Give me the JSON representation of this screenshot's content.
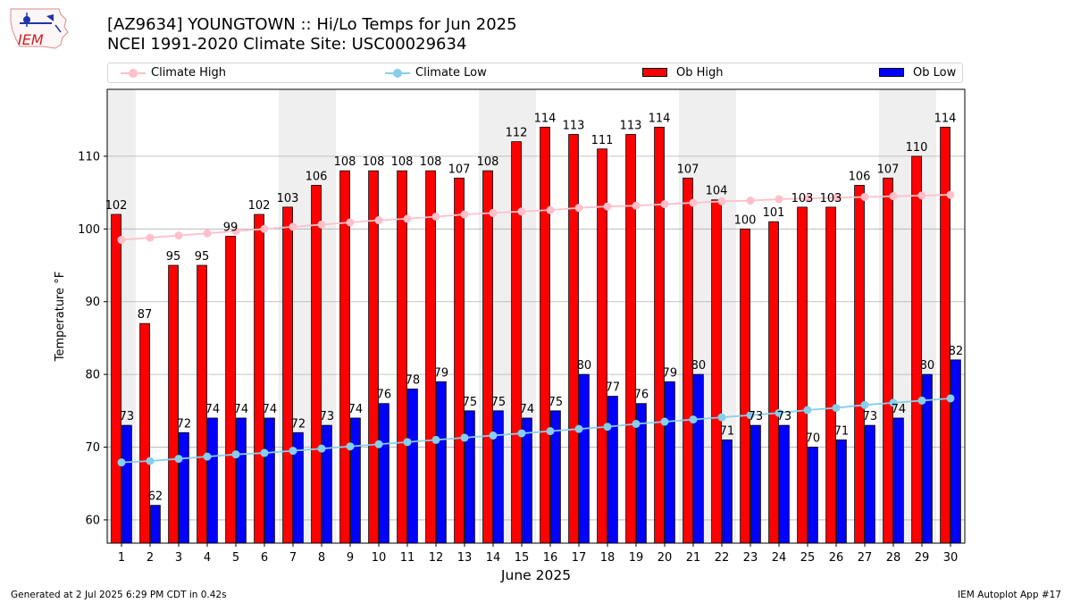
{
  "header": {
    "title_line1": "[AZ9634] YOUNGTOWN :: Hi/Lo Temps for Jun 2025",
    "title_line2": "NCEI 1991-2020 Climate Site: USC00029634"
  },
  "logo": {
    "text": "IEM"
  },
  "legend": {
    "placement": "top, full width",
    "climate_high": "Climate High",
    "climate_low": "Climate Low",
    "ob_high": "Ob High",
    "ob_low": "Ob Low"
  },
  "footer": {
    "left": "Generated at 2 Jul 2025 6:29 PM CDT in 0.42s",
    "right": "IEM Autoplot App #17"
  },
  "colors": {
    "ob_high": "#ff0000",
    "ob_low": "#0000ff",
    "climate_high": "#ffc0cb",
    "climate_low": "#87ceeb",
    "weekend_shade": "#efefef",
    "grid": "#b0b0b0"
  },
  "chart_data": {
    "type": "bar",
    "title": "[AZ9634] YOUNGTOWN :: Hi/Lo Temps for Jun 2025",
    "subtitle": "NCEI 1991-2020 Climate Site: USC00029634",
    "xlabel": "June 2025",
    "ylabel": "Temperature °F",
    "ylim": [
      56.8,
      119.2
    ],
    "yticks": [
      60,
      70,
      80,
      90,
      100,
      110
    ],
    "grid": "y",
    "categories": [
      "1",
      "2",
      "3",
      "4",
      "5",
      "6",
      "7",
      "8",
      "9",
      "10",
      "11",
      "12",
      "13",
      "14",
      "15",
      "16",
      "17",
      "18",
      "19",
      "20",
      "21",
      "22",
      "23",
      "24",
      "25",
      "26",
      "27",
      "28",
      "29",
      "30"
    ],
    "shaded_days": [
      1,
      7,
      8,
      14,
      15,
      21,
      22,
      28,
      29
    ],
    "series": [
      {
        "name": "Ob High",
        "kind": "bar",
        "values": [
          102,
          87,
          95,
          95,
          99,
          102,
          103,
          106,
          108,
          108,
          108,
          108,
          107,
          108,
          112,
          114,
          113,
          111,
          113,
          114,
          107,
          104,
          100,
          101,
          103,
          103,
          106,
          107,
          110,
          114
        ]
      },
      {
        "name": "Ob Low",
        "kind": "bar",
        "values": [
          73,
          62,
          72,
          74,
          74,
          74,
          72,
          73,
          74,
          76,
          78,
          79,
          75,
          75,
          74,
          75,
          80,
          77,
          76,
          79,
          80,
          71,
          73,
          73,
          70,
          71,
          73,
          74,
          80,
          82
        ]
      },
      {
        "name": "Climate High",
        "kind": "line",
        "values": [
          98.5,
          98.8,
          99.1,
          99.4,
          99.7,
          100.0,
          100.3,
          100.6,
          100.9,
          101.2,
          101.4,
          101.7,
          102.0,
          102.2,
          102.4,
          102.6,
          102.9,
          103.1,
          103.2,
          103.4,
          103.6,
          103.8,
          103.9,
          104.1,
          104.2,
          104.3,
          104.4,
          104.5,
          104.6,
          104.7
        ]
      },
      {
        "name": "Climate Low",
        "kind": "line",
        "values": [
          67.9,
          68.1,
          68.4,
          68.7,
          69.0,
          69.2,
          69.5,
          69.8,
          70.1,
          70.4,
          70.7,
          71.0,
          71.3,
          71.6,
          71.9,
          72.2,
          72.5,
          72.8,
          73.2,
          73.5,
          73.8,
          74.1,
          74.4,
          74.7,
          75.1,
          75.4,
          75.8,
          76.1,
          76.4,
          76.7
        ]
      }
    ]
  }
}
